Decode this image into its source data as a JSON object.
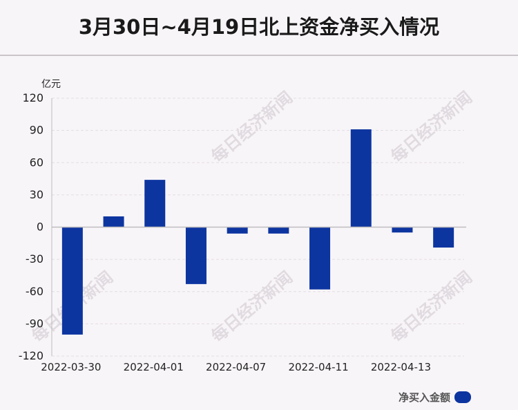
{
  "title": "3月30日~4月19日北上资金净买入情况",
  "watermark": "每日经济新闻",
  "colors": {
    "bar": "#0d35a0",
    "axis": "#bdbdbd",
    "grid": "#e2dde2"
  },
  "chart_data": {
    "type": "bar",
    "ylabel": "亿元",
    "ylim": [
      -120,
      120
    ],
    "yticks": [
      120,
      90,
      60,
      30,
      0,
      -30,
      -60,
      -90,
      -120
    ],
    "xtick_labels": [
      "2022-03-30",
      "2022-04-01",
      "2022-04-07",
      "2022-04-11",
      "2022-04-13"
    ],
    "xtick_indices": [
      0,
      2,
      4,
      6,
      8
    ],
    "series": [
      {
        "name": "净买入金额",
        "values": [
          -100,
          10,
          44,
          -53,
          -6,
          -6,
          -58,
          91,
          -5,
          -19
        ]
      }
    ],
    "grid": true,
    "legend": "bottom-right"
  }
}
